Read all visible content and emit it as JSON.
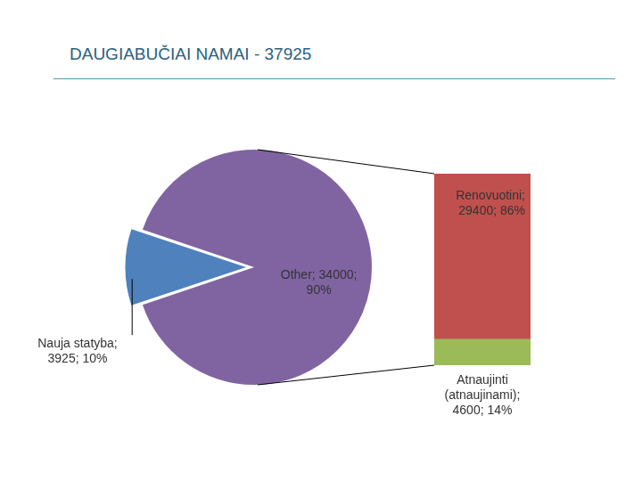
{
  "title": "DAUGIABUČIAI NAMAI - 37925",
  "chart_data": [
    {
      "type": "pie",
      "categories": [
        "Nauja statyba",
        "Other"
      ],
      "values": [
        3925,
        34000
      ],
      "value_labels": [
        "Nauja statyba; 3925; 10%",
        "Other; 34000; 90%"
      ],
      "colors": [
        "#4f81bd",
        "#8064a2"
      ],
      "data_labels": true
    },
    {
      "type": "bar",
      "stacked": true,
      "tick_labels": false,
      "data_labels": true,
      "categories": [
        null
      ],
      "ylim": [
        0,
        34000
      ],
      "series": [
        {
          "name": "Atnaujinti (atnaujinami)",
          "color": "#9bbb59",
          "values": [
            4600
          ],
          "value_labels": [
            "Atnaujinti (atnaujinami); 4600; 14%"
          ]
        },
        {
          "name": "Renovuotini",
          "color": "#c0504d",
          "values": [
            29400
          ],
          "value_labels": [
            "Renovuotini; 29400; 86%"
          ]
        }
      ]
    }
  ]
}
